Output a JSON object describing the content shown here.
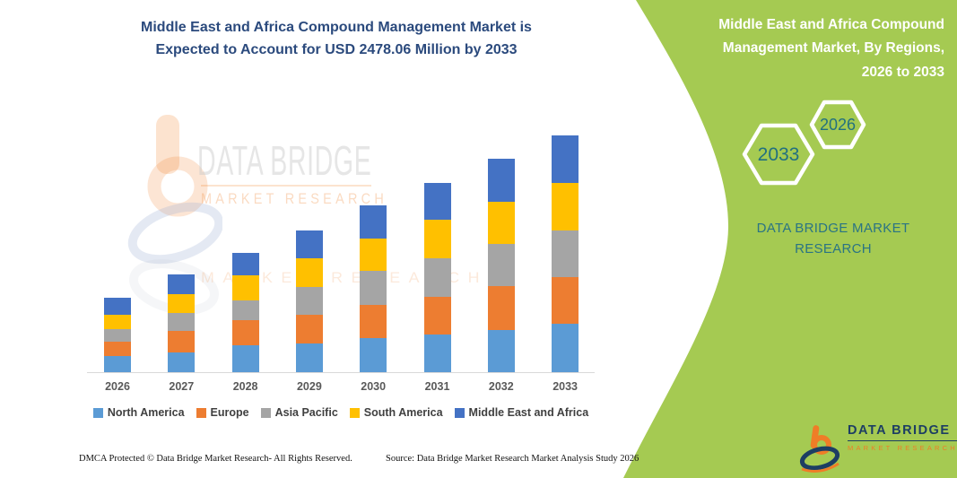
{
  "header": {
    "title_line1": "Middle East and Africa Compound Management Market is",
    "title_line2": "Expected to Account for USD 2478.06 Million by 2033"
  },
  "right_panel": {
    "heading": "Middle East and Africa Compound Management Market, By Regions, 2026 to 2033",
    "hexagon_back_label": "2033",
    "hexagon_front_label": "2026",
    "brand_name": "DATA BRIDGE MARKET RESEARCH"
  },
  "watermark": {
    "brand": "DATA BRIDGE",
    "sub_brand": "MARKET RESEARCH"
  },
  "brand_logo": {
    "name": "DATA BRIDGE",
    "tagline": "MARKET RESEARCH"
  },
  "footer": {
    "dmca": "DMCA Protected © Data Bridge Market Research-  All Rights Reserved.",
    "source": "Source: Data Bridge Market Research  Market Analysis Study 2026"
  },
  "colors": {
    "panel_green": "#a5ca52",
    "teal_text": "#2a7484",
    "navy_title": "#2b4a7d",
    "logo_orange": "#f07e26",
    "logo_navy": "#1d3e63",
    "axis_gray": "#d9d9d9",
    "label_gray": "#595959"
  },
  "chart_data": {
    "type": "bar",
    "stacked": true,
    "title": "Middle East and Africa Compound Management Market is Expected to Account for USD 2478.06 Million by 2033",
    "y_unit": "USD Million",
    "ylim": [
      0,
      2600
    ],
    "grid": false,
    "legend_position": "bottom",
    "categories": [
      "2026",
      "2027",
      "2028",
      "2029",
      "2030",
      "2031",
      "2032",
      "2033"
    ],
    "series": [
      {
        "name": "North America",
        "color": "#5b9bd5",
        "values": [
          166,
          204,
          282,
          298,
          354,
          392,
          444,
          507
        ]
      },
      {
        "name": "Europe",
        "color": "#ed7d31",
        "values": [
          150,
          228,
          260,
          303,
          354,
          401,
          454,
          485
        ]
      },
      {
        "name": "Asia Pacific",
        "color": "#a5a5a5",
        "values": [
          138,
          188,
          209,
          291,
          357,
          397,
          448,
          491
        ]
      },
      {
        "name": "South America",
        "color": "#ffc000",
        "values": [
          147,
          194,
          260,
          303,
          338,
          407,
          439,
          495
        ]
      },
      {
        "name": "Middle East and Africa",
        "color": "#4472c4",
        "values": [
          175,
          207,
          241,
          291,
          345,
          385,
          454,
          500
        ]
      }
    ],
    "totals": [
      776,
      1021,
      1252,
      1486,
      1748,
      1982,
      2239,
      2478
    ]
  }
}
